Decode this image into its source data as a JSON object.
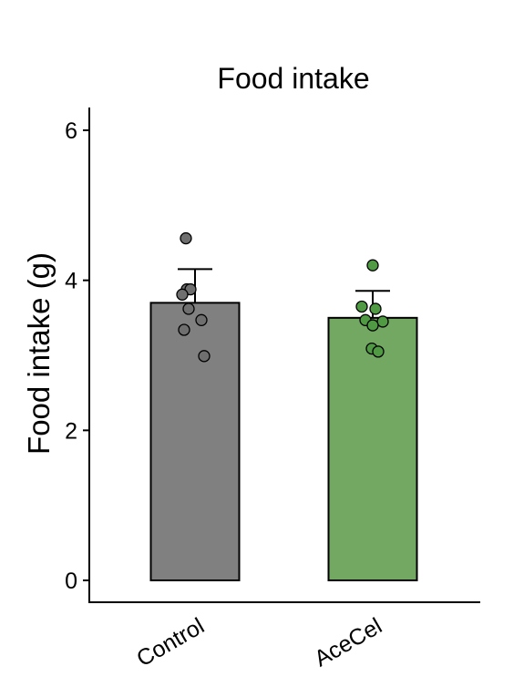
{
  "chart_data": {
    "type": "bar",
    "title": "Food intake",
    "xlabel": "",
    "ylabel": "Food intake (g)",
    "ylim": [
      0,
      6.2
    ],
    "yticks": [
      0,
      2,
      4,
      6
    ],
    "grid": false,
    "legend": "none",
    "categories": [
      "Control",
      "AceCel"
    ],
    "colors": [
      "#808080",
      "#72a862"
    ],
    "point_colors": [
      "#6f6f6f",
      "#4f9a43"
    ],
    "values": [
      3.7,
      3.5
    ],
    "error_upper": [
      4.15,
      3.86
    ],
    "points": [
      [
        4.56,
        3.88,
        3.88,
        3.81,
        3.62,
        3.47,
        3.34,
        2.99
      ],
      [
        4.2,
        3.65,
        3.62,
        3.47,
        3.45,
        3.4,
        3.09,
        3.05
      ]
    ]
  }
}
